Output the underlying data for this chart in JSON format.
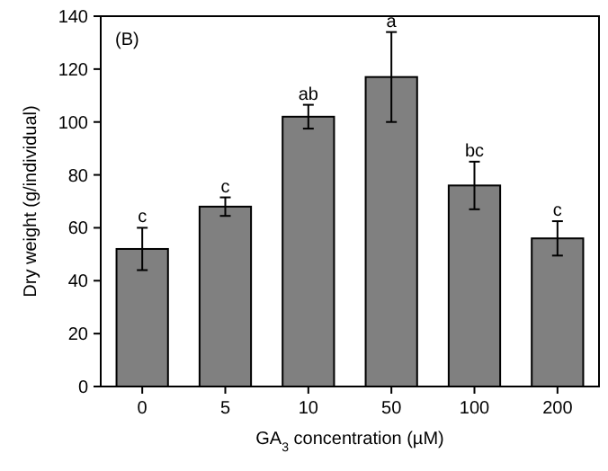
{
  "chart_data": {
    "type": "bar",
    "xlabel": "GA$_{3}$ concentration (µM)",
    "ylabel": "Dry weight (g/individual)",
    "categories": [
      "0",
      "5",
      "10",
      "50",
      "100",
      "200"
    ],
    "values": [
      52,
      68,
      102,
      117,
      76,
      56
    ],
    "errors": [
      8,
      3.5,
      4.5,
      17,
      9,
      6.5
    ],
    "color": "#808080",
    "ylim": [
      0,
      140
    ],
    "yticks": [
      0,
      20,
      40,
      60,
      80,
      100,
      120,
      140
    ],
    "grid": false,
    "annotations": [
      "(B)",
      {
        "text": "c",
        "x": "0",
        "y": 60
      },
      {
        "text": "c",
        "x": "5",
        "y": 71.5
      },
      {
        "text": "ab",
        "x": "10",
        "y": 106.5
      },
      {
        "text": "a",
        "x": "50",
        "y": 134
      },
      {
        "text": "bc",
        "x": "100",
        "y": 85
      },
      {
        "text": "c",
        "x": "200",
        "y": 62.5
      }
    ]
  }
}
